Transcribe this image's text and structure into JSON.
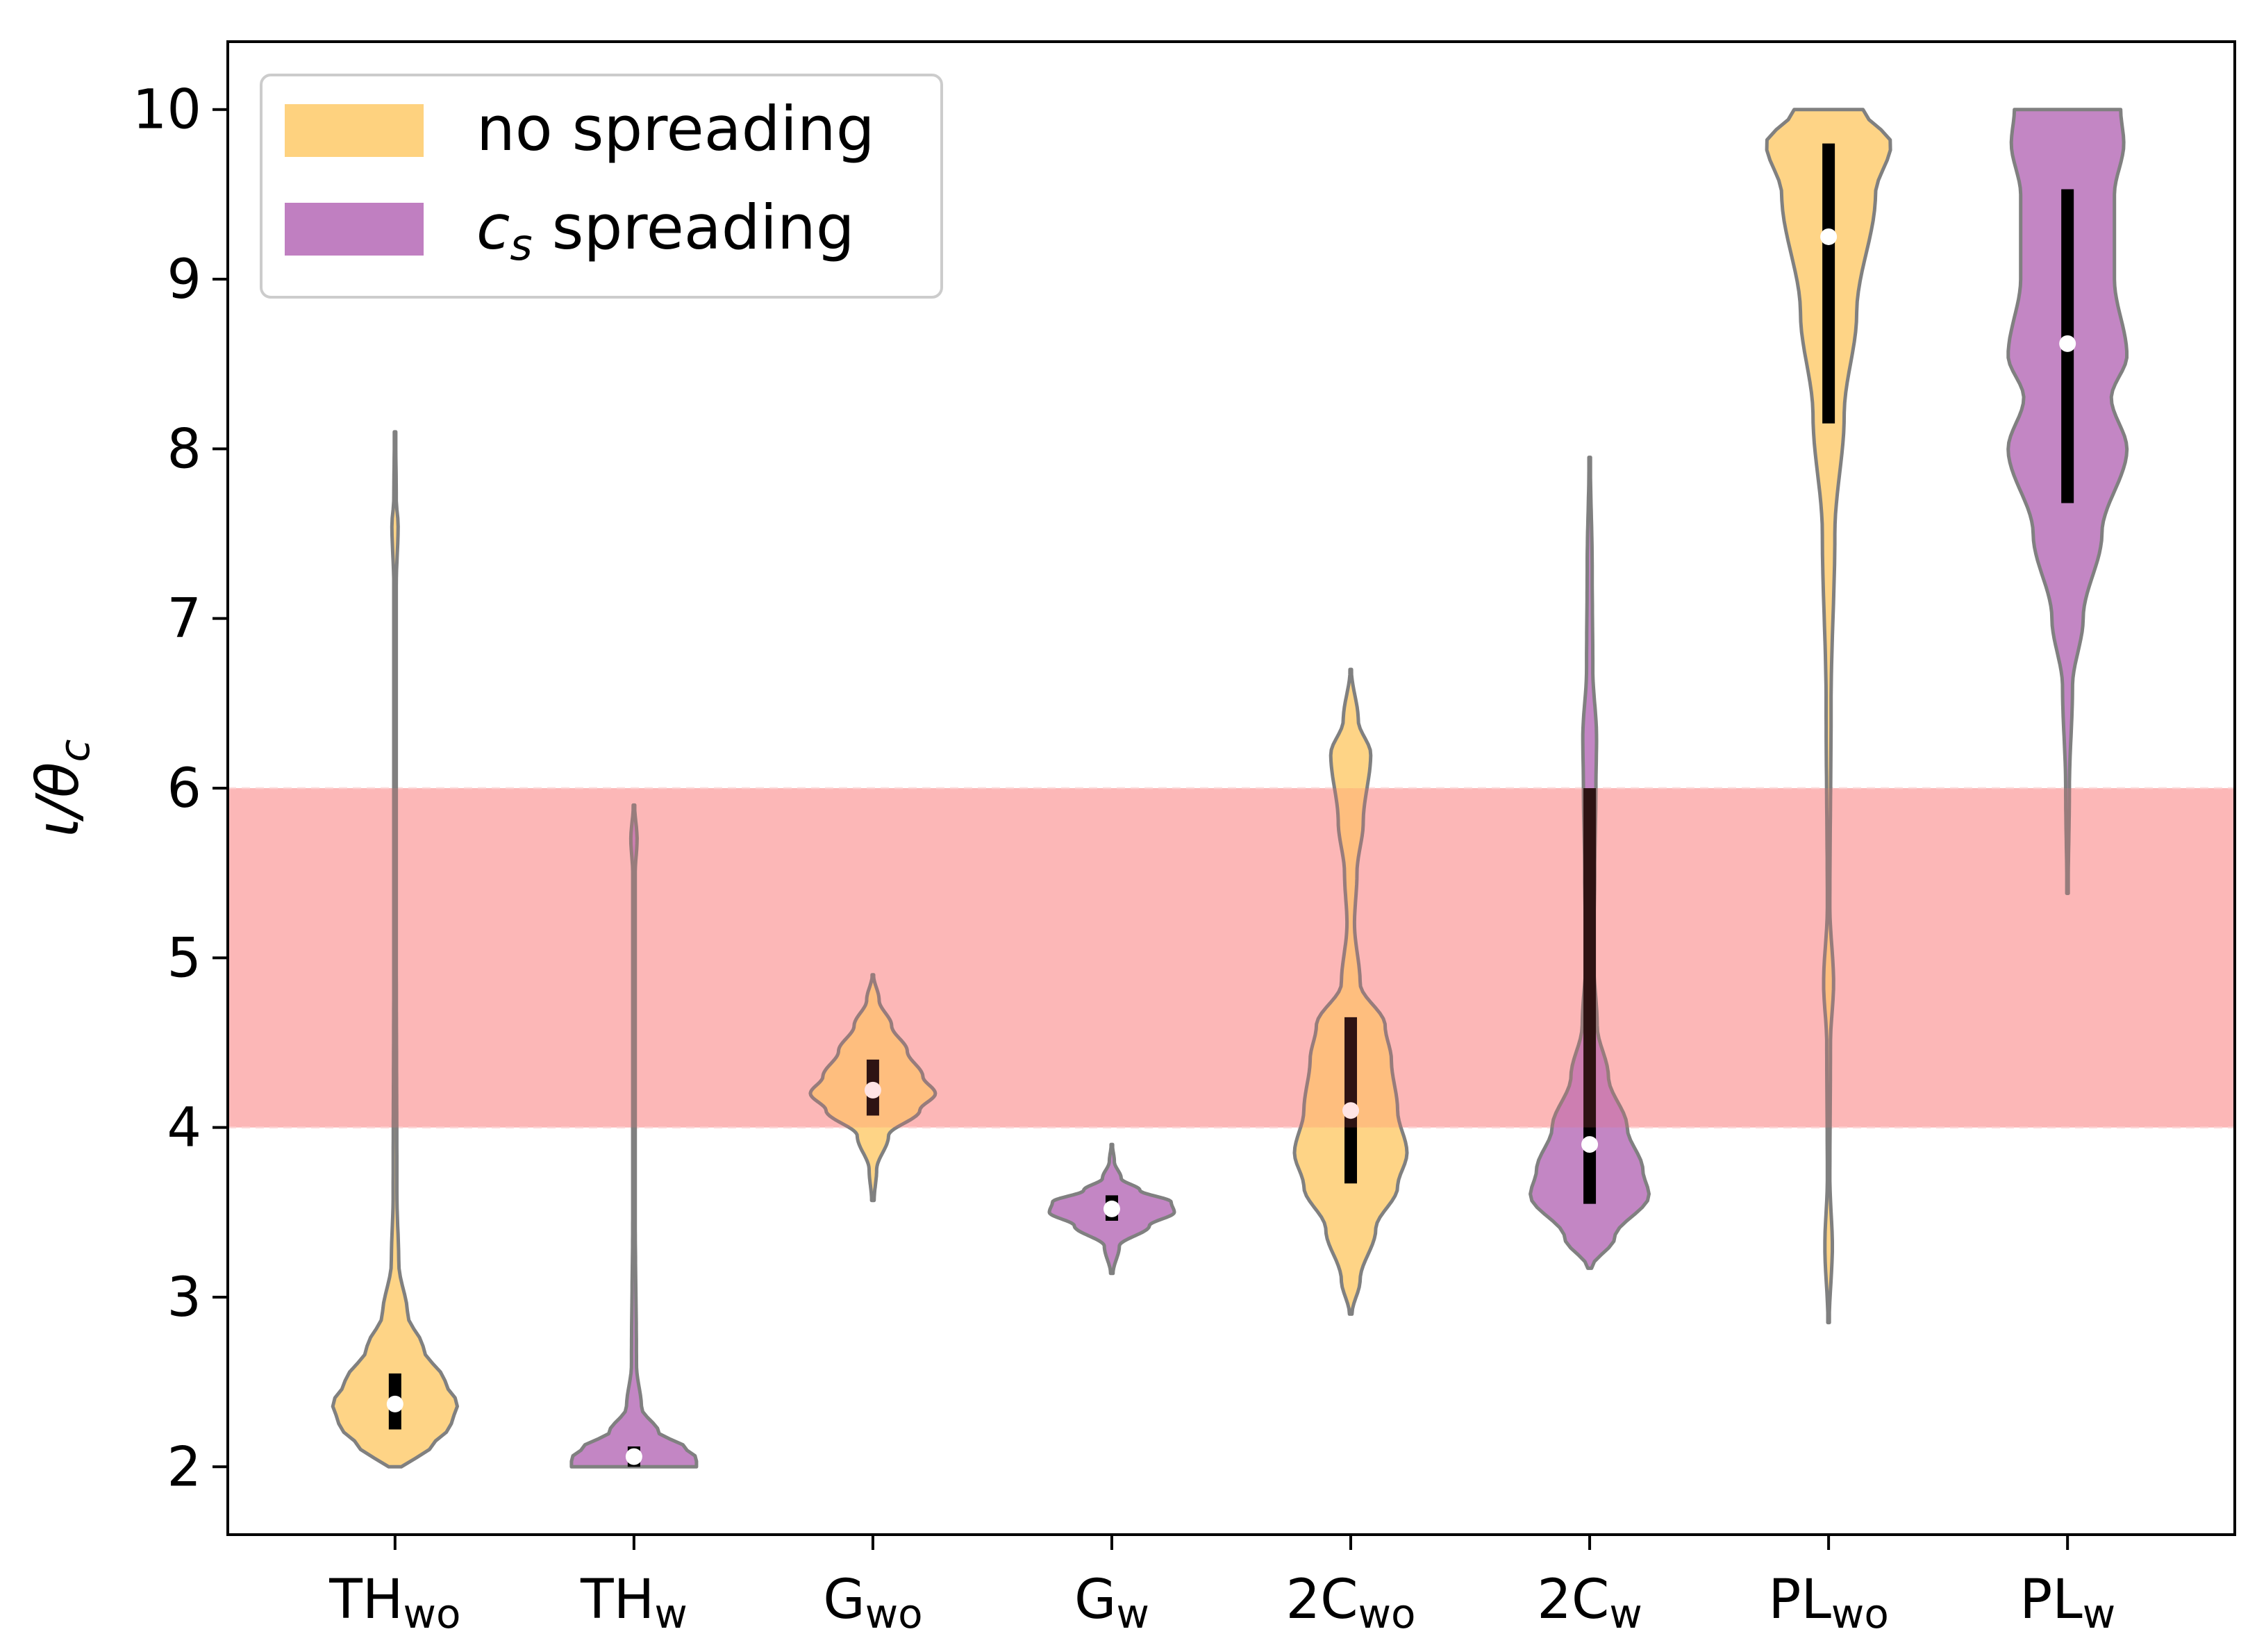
{
  "chart_data": {
    "type": "violin",
    "ylabel": "ι/θ_c",
    "ylabel_main": "ι/θ",
    "ylabel_sub": "c",
    "ylim": [
      1.6,
      10.4
    ],
    "yticks": [
      2,
      3,
      4,
      5,
      6,
      7,
      8,
      9,
      10
    ],
    "yticklabels": [
      "2",
      "3",
      "4",
      "5",
      "6",
      "7",
      "8",
      "9",
      "10"
    ],
    "shaded_band": {
      "from": 4,
      "to": 6,
      "color": "#fcc8c8"
    },
    "legend": {
      "position": "top-left",
      "entries": [
        {
          "label": "no spreading",
          "prefix": "",
          "color": "#fed27f"
        },
        {
          "label": " spreading",
          "prefix": "c",
          "prefix_sub": "s",
          "color": "#c07fc1"
        }
      ]
    },
    "colors": {
      "no_spreading": "#fed27f",
      "cs_spreading": "#c07fc1",
      "outline": "#808080",
      "iqr": "#000000",
      "median": "#ffffff"
    },
    "categories": [
      {
        "label": "TH",
        "sub": "wo",
        "group": "no_spreading",
        "median": 2.37,
        "q1": 2.22,
        "q3": 2.55,
        "min": 2.0,
        "max": 8.1,
        "density": [
          [
            2.0,
            0.1
          ],
          [
            2.1,
            0.55
          ],
          [
            2.25,
            0.9
          ],
          [
            2.37,
            1.0
          ],
          [
            2.5,
            0.8
          ],
          [
            2.7,
            0.45
          ],
          [
            2.9,
            0.2
          ],
          [
            3.2,
            0.06
          ],
          [
            3.6,
            0.03
          ],
          [
            5,
            0.02
          ],
          [
            7.2,
            0.02
          ],
          [
            7.55,
            0.05
          ],
          [
            7.7,
            0.02
          ],
          [
            8.1,
            0.01
          ]
        ]
      },
      {
        "label": "TH",
        "sub": "w",
        "group": "cs_spreading",
        "median": 2.06,
        "q1": 2.0,
        "q3": 2.12,
        "min": 2.0,
        "max": 5.9,
        "density": [
          [
            2.0,
            1.0
          ],
          [
            2.05,
            1.0
          ],
          [
            2.12,
            0.8
          ],
          [
            2.2,
            0.4
          ],
          [
            2.35,
            0.12
          ],
          [
            2.6,
            0.04
          ],
          [
            3.5,
            0.02
          ],
          [
            5.5,
            0.02
          ],
          [
            5.7,
            0.05
          ],
          [
            5.9,
            0.01
          ]
        ]
      },
      {
        "label": "G",
        "sub": "wo",
        "group": "no_spreading",
        "median": 4.22,
        "q1": 4.07,
        "q3": 4.4,
        "min": 3.57,
        "max": 4.9,
        "density": [
          [
            3.57,
            0.02
          ],
          [
            3.75,
            0.06
          ],
          [
            3.95,
            0.25
          ],
          [
            4.1,
            0.75
          ],
          [
            4.2,
            1.0
          ],
          [
            4.3,
            0.8
          ],
          [
            4.45,
            0.55
          ],
          [
            4.6,
            0.3
          ],
          [
            4.75,
            0.1
          ],
          [
            4.9,
            0.01
          ]
        ]
      },
      {
        "label": "G",
        "sub": "w",
        "group": "cs_spreading",
        "median": 3.52,
        "q1": 3.45,
        "q3": 3.6,
        "min": 3.14,
        "max": 3.9,
        "density": [
          [
            3.14,
            0.02
          ],
          [
            3.3,
            0.12
          ],
          [
            3.42,
            0.6
          ],
          [
            3.5,
            1.0
          ],
          [
            3.56,
            0.95
          ],
          [
            3.63,
            0.45
          ],
          [
            3.7,
            0.15
          ],
          [
            3.8,
            0.04
          ],
          [
            3.9,
            0.01
          ]
        ]
      },
      {
        "label": "2C",
        "sub": "wo",
        "group": "no_spreading",
        "median": 4.1,
        "q1": 3.67,
        "q3": 4.65,
        "min": 2.9,
        "max": 6.7,
        "density": [
          [
            2.9,
            0.02
          ],
          [
            3.1,
            0.15
          ],
          [
            3.4,
            0.4
          ],
          [
            3.65,
            0.75
          ],
          [
            3.85,
            0.9
          ],
          [
            4.1,
            0.75
          ],
          [
            4.4,
            0.65
          ],
          [
            4.6,
            0.55
          ],
          [
            4.85,
            0.15
          ],
          [
            5.2,
            0.06
          ],
          [
            5.5,
            0.1
          ],
          [
            5.8,
            0.2
          ],
          [
            6.2,
            0.32
          ],
          [
            6.4,
            0.12
          ],
          [
            6.7,
            0.01
          ]
        ]
      },
      {
        "label": "2C",
        "sub": "w",
        "group": "cs_spreading",
        "median": 3.9,
        "q1": 3.55,
        "q3": 6.0,
        "min": 3.17,
        "max": 7.95,
        "density": [
          [
            3.17,
            0.03
          ],
          [
            3.35,
            0.4
          ],
          [
            3.6,
            0.95
          ],
          [
            3.75,
            0.85
          ],
          [
            4.0,
            0.6
          ],
          [
            4.3,
            0.3
          ],
          [
            4.6,
            0.12
          ],
          [
            5.0,
            0.06
          ],
          [
            5.5,
            0.08
          ],
          [
            6.0,
            0.1
          ],
          [
            6.3,
            0.11
          ],
          [
            6.7,
            0.05
          ],
          [
            7.3,
            0.04
          ],
          [
            7.95,
            0.01
          ]
        ]
      },
      {
        "label": "PL",
        "sub": "wo",
        "group": "no_spreading",
        "median": 9.25,
        "q1": 8.15,
        "q3": 9.8,
        "min": 2.85,
        "max": 10.0,
        "density": [
          [
            2.85,
            0.01
          ],
          [
            3.3,
            0.06
          ],
          [
            3.7,
            0.02
          ],
          [
            4.5,
            0.03
          ],
          [
            4.85,
            0.08
          ],
          [
            5.3,
            0.02
          ],
          [
            6.5,
            0.04
          ],
          [
            7.5,
            0.1
          ],
          [
            8.2,
            0.25
          ],
          [
            8.8,
            0.45
          ],
          [
            9.5,
            0.75
          ],
          [
            9.8,
            1.0
          ],
          [
            10.0,
            0.55
          ]
        ]
      },
      {
        "label": "PL",
        "sub": "w",
        "group": "cs_spreading",
        "median": 8.62,
        "q1": 7.68,
        "q3": 9.53,
        "min": 5.38,
        "max": 10.0,
        "density": [
          [
            5.38,
            0.01
          ],
          [
            6.0,
            0.03
          ],
          [
            6.6,
            0.08
          ],
          [
            7.0,
            0.25
          ],
          [
            7.5,
            0.55
          ],
          [
            8.0,
            0.95
          ],
          [
            8.3,
            0.7
          ],
          [
            8.55,
            0.95
          ],
          [
            9.0,
            0.75
          ],
          [
            9.5,
            0.75
          ],
          [
            9.8,
            0.9
          ],
          [
            10.0,
            0.85
          ]
        ]
      }
    ]
  }
}
